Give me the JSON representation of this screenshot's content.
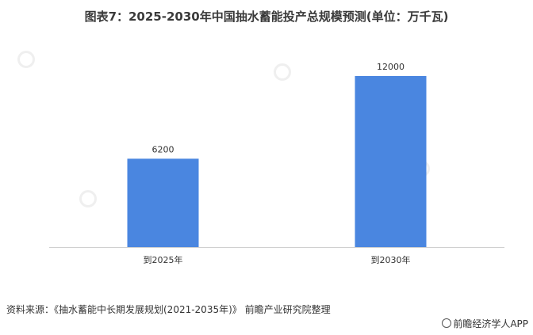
{
  "chart_data": {
    "type": "bar",
    "title": "图表7：2025-2030年中国抽水蓄能投产总规模预测(单位：万千瓦)",
    "categories": [
      "到2025年",
      "到2030年"
    ],
    "values": [
      6200,
      12000
    ],
    "data_labels": [
      "6200",
      "12000"
    ],
    "ylim": [
      0,
      14000
    ],
    "grid": false,
    "bar_color": "#4a86e0",
    "axis_color": "#d0d0d0"
  },
  "source_text": "资料来源：《抽水蓄能中长期发展规划(2021-2035年)》 前瞻产业研究院整理",
  "brand_text": "前瞻经济学人APP"
}
